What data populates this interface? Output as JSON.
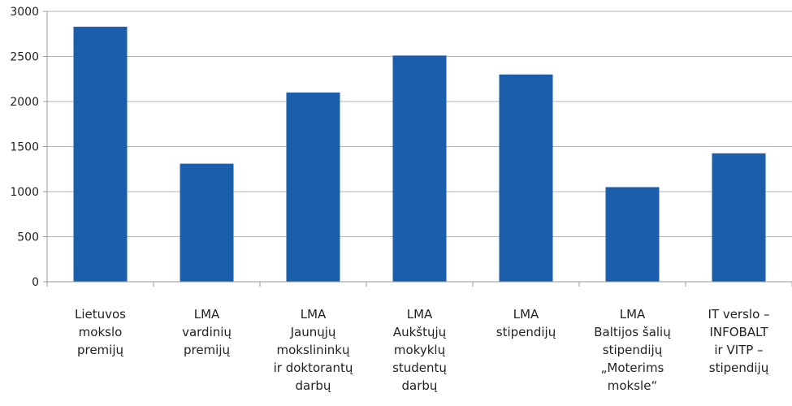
{
  "chart_data": {
    "type": "bar",
    "categories": [
      [
        "Lietuvos",
        "mokslo",
        "premijų"
      ],
      [
        "LMA",
        "vardinių",
        "premijų"
      ],
      [
        "LMA",
        "Jaunųjų",
        "mokslininkų",
        "ir doktorantų",
        "darbų"
      ],
      [
        "LMA",
        "Aukštųjų",
        "mokyklų",
        "studentų",
        "darbų"
      ],
      [
        "LMA",
        "stipendijų"
      ],
      [
        "LMA",
        "Baltijos šalių",
        "stipendijų",
        "„Moterims",
        "moksle“"
      ],
      [
        "IT verslo –",
        "INFOBALT",
        "ir VITP –",
        "stipendijų"
      ]
    ],
    "values": [
      2830,
      1310,
      2100,
      2510,
      2300,
      1050,
      1425
    ],
    "yticks": [
      "0",
      "500",
      "1000",
      "1500",
      "2000",
      "2500",
      "3000"
    ],
    "ylim": [
      0,
      3000
    ],
    "grid": true,
    "colors": {
      "bar": "#1a5eac",
      "grid": "#b3b3b3",
      "axis": "#9a9a9a"
    }
  }
}
